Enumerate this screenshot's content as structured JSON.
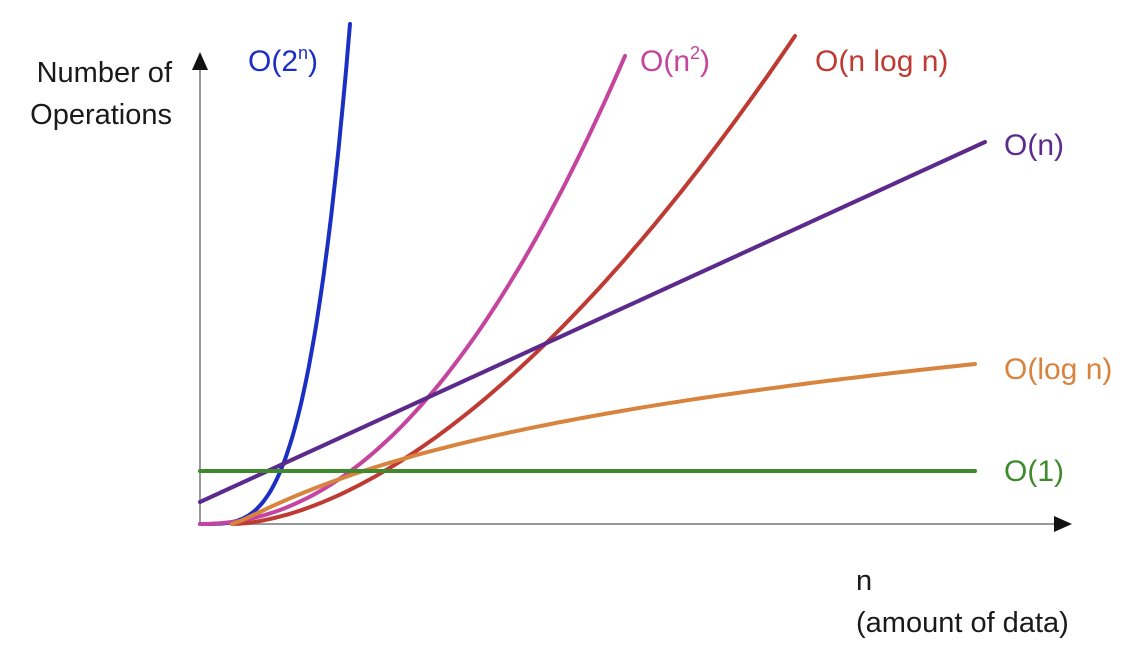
{
  "chart_data": {
    "type": "line",
    "ylabel": "Number of Operations",
    "xlabel": "n (amount of data)",
    "ylabel_lines": [
      "Number of",
      "Operations"
    ],
    "xlabel_lines": [
      "n",
      "(amount of data)"
    ],
    "x": [
      0,
      0.5,
      1,
      1.5,
      2,
      2.5,
      3,
      3.5,
      4,
      4.5,
      5,
      5.5,
      6
    ],
    "grid": false,
    "legend": "inline labels at line ends",
    "series": [
      {
        "name": "O(2ⁿ)",
        "base": "O(2",
        "sup": "n",
        "tail": ")",
        "color": "#1b2fc4",
        "values": [
          1,
          1.41,
          2,
          2.83,
          4,
          5.66,
          8,
          11.3,
          16,
          22.6,
          32,
          null,
          null
        ]
      },
      {
        "name": "O(n²)",
        "base": "O(n",
        "sup": "2",
        "tail": ")",
        "color": "#c4449e",
        "values": [
          0,
          0.25,
          1,
          2.25,
          4,
          6.25,
          9,
          12.25,
          16,
          20.25,
          25,
          null,
          null
        ]
      },
      {
        "name": "O(n log n)",
        "base": "O(n log n)",
        "sup": "",
        "tail": "",
        "color": "#bf3a32",
        "values": [
          0,
          0.5,
          1,
          2,
          3.3,
          4.8,
          6.5,
          8.5,
          11,
          14,
          17,
          20.5,
          24.5
        ]
      },
      {
        "name": "O(n)",
        "base": "O(n)",
        "sup": "",
        "tail": "",
        "color": "#5b2a8c",
        "values": [
          1,
          1.9,
          2.8,
          3.7,
          4.6,
          5.5,
          6.4,
          7.3,
          8.2,
          9.1,
          10,
          10.9,
          11.8
        ]
      },
      {
        "name": "O(log n)",
        "base": "O(log n)",
        "sup": "",
        "tail": "",
        "color": "#d8833e",
        "values": [
          0,
          1.3,
          2.2,
          2.9,
          3.4,
          3.8,
          4.1,
          4.4,
          4.6,
          4.8,
          5.0,
          5.1,
          5.2
        ]
      },
      {
        "name": "O(1)",
        "base": "O(1)",
        "sup": "",
        "tail": "",
        "color": "#3f8a2c",
        "values": [
          2,
          2,
          2,
          2,
          2,
          2,
          2,
          2,
          2,
          2,
          2,
          2,
          2
        ]
      }
    ]
  }
}
